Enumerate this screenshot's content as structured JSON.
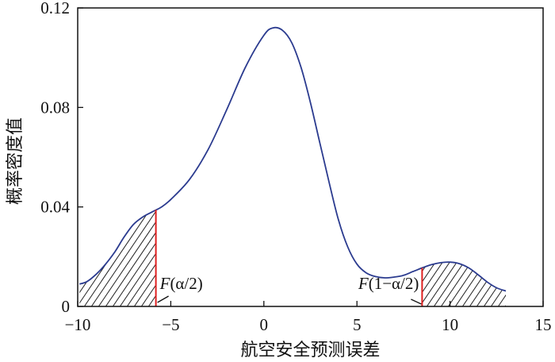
{
  "chart_data": {
    "type": "line",
    "title": "",
    "xlabel": "航空安全预测误差",
    "ylabel": "概率密度值",
    "xlim": [
      -10,
      15
    ],
    "ylim": [
      0,
      0.12
    ],
    "x_ticks": [
      -10,
      -5,
      0,
      5,
      10,
      15
    ],
    "x_tick_labels": [
      "−10",
      "−5",
      "0",
      "5",
      "10",
      "15"
    ],
    "y_ticks": [
      0,
      0.04,
      0.08,
      0.12
    ],
    "y_tick_labels": [
      "0",
      "0.04",
      "0.08",
      "0.12"
    ],
    "grid": false,
    "legend": "none",
    "series": [
      {
        "x": [
          -9.9,
          -9.5,
          -9.0,
          -8.5,
          -8.0,
          -7.5,
          -7.0,
          -6.5,
          -6.0,
          -5.5,
          -5.0,
          -4.0,
          -3.0,
          -2.0,
          -1.0,
          0.0,
          0.5,
          1.0,
          1.5,
          2.0,
          2.5,
          3.0,
          3.5,
          4.0,
          4.5,
          5.0,
          5.5,
          6.0,
          6.5,
          7.0,
          7.5,
          8.0,
          8.5,
          9.0,
          9.5,
          10.0,
          10.5,
          11.0,
          11.5,
          12.0,
          12.5,
          13.0
        ],
        "y": [
          0.009,
          0.01,
          0.013,
          0.017,
          0.022,
          0.028,
          0.033,
          0.036,
          0.038,
          0.04,
          0.043,
          0.051,
          0.063,
          0.079,
          0.096,
          0.109,
          0.112,
          0.111,
          0.106,
          0.096,
          0.082,
          0.066,
          0.05,
          0.035,
          0.024,
          0.017,
          0.0135,
          0.012,
          0.0115,
          0.0118,
          0.0125,
          0.014,
          0.0155,
          0.0168,
          0.0176,
          0.0178,
          0.0172,
          0.0155,
          0.0128,
          0.0098,
          0.0075,
          0.0062
        ]
      }
    ],
    "colors": {
      "curve": "#2b3b8f",
      "critical_line": "#e02020",
      "axes": "#111111",
      "hatch": "#222222"
    },
    "critical_values": [
      {
        "x": -5.8,
        "label_prefix": "F",
        "label_arg": "(α/2)",
        "tail": "left"
      },
      {
        "x": 8.5,
        "label_prefix": "F",
        "label_arg": "(1−α/2)",
        "tail": "right"
      }
    ]
  }
}
